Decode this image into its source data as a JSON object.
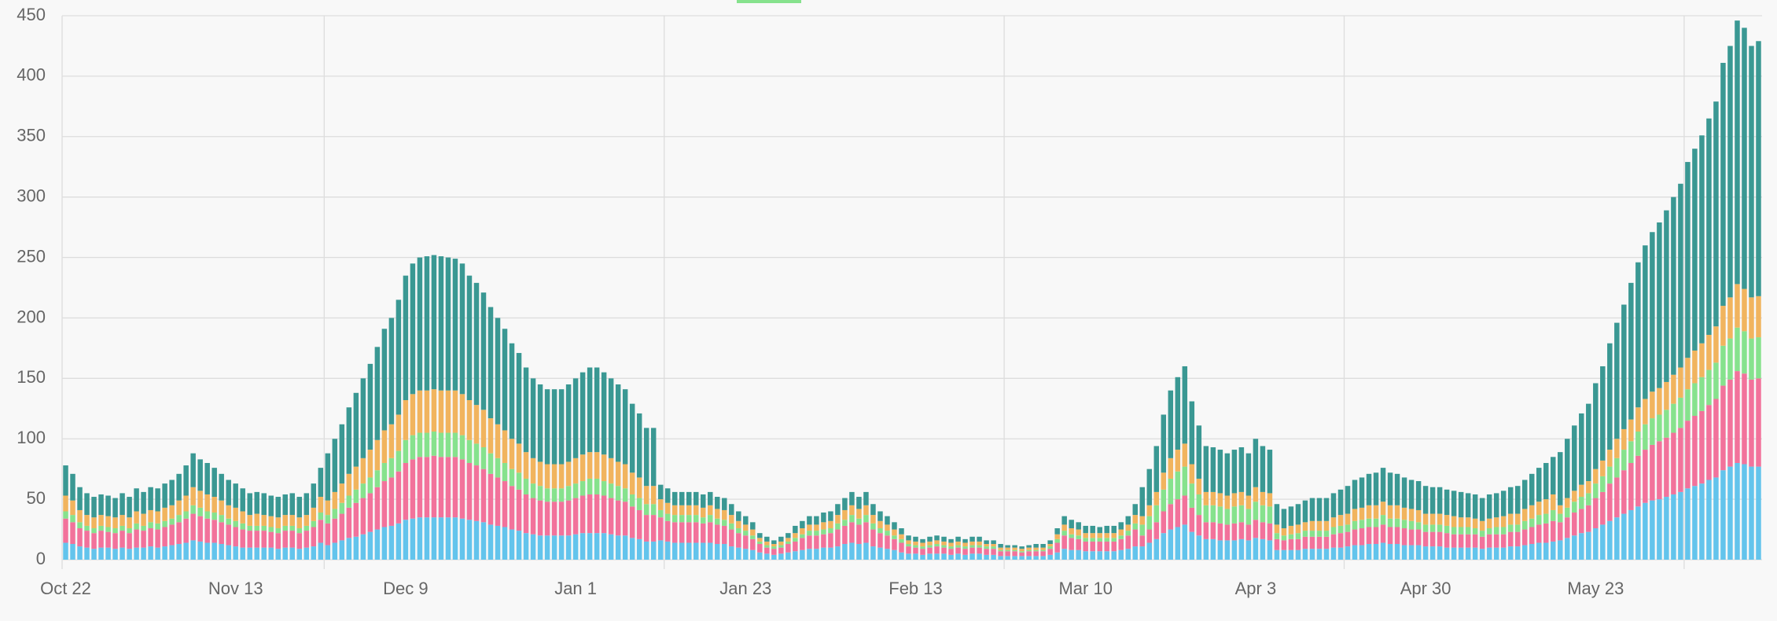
{
  "chart_data": {
    "type": "bar",
    "stacked": true,
    "grid": true,
    "ylim": [
      0,
      450
    ],
    "yticks": [
      0,
      50,
      100,
      150,
      200,
      250,
      300,
      350,
      400,
      450
    ],
    "categories": [
      "Oct 22",
      null,
      null,
      null,
      null,
      null,
      null,
      null,
      null,
      null,
      null,
      null,
      null,
      null,
      null,
      null,
      null,
      null,
      null,
      null,
      null,
      null,
      null,
      null,
      "Nov 13",
      null,
      null,
      null,
      null,
      null,
      null,
      null,
      null,
      null,
      null,
      null,
      null,
      null,
      null,
      null,
      null,
      null,
      null,
      null,
      null,
      null,
      null,
      null,
      "Dec 9",
      null,
      null,
      null,
      null,
      null,
      null,
      null,
      null,
      null,
      null,
      null,
      null,
      null,
      null,
      null,
      null,
      null,
      null,
      null,
      null,
      null,
      null,
      null,
      "Jan 1",
      null,
      null,
      null,
      null,
      null,
      null,
      null,
      null,
      null,
      null,
      null,
      null,
      null,
      null,
      null,
      null,
      null,
      null,
      null,
      null,
      null,
      null,
      null,
      "Jan 23",
      null,
      null,
      null,
      null,
      null,
      null,
      null,
      null,
      null,
      null,
      null,
      null,
      null,
      null,
      null,
      null,
      null,
      null,
      null,
      null,
      null,
      null,
      null,
      "Feb 13",
      null,
      null,
      null,
      null,
      null,
      null,
      null,
      null,
      null,
      null,
      null,
      null,
      null,
      null,
      null,
      null,
      null,
      null,
      null,
      null,
      null,
      null,
      null,
      "Mar 10",
      null,
      null,
      null,
      null,
      null,
      null,
      null,
      null,
      null,
      null,
      null,
      null,
      null,
      null,
      null,
      null,
      null,
      null,
      null,
      null,
      null,
      null,
      null,
      "Apr 3",
      null,
      null,
      null,
      null,
      null,
      null,
      null,
      null,
      null,
      null,
      null,
      null,
      null,
      null,
      null,
      null,
      null,
      null,
      null,
      null,
      null,
      null,
      null,
      "Apr 30",
      null,
      null,
      null,
      null,
      null,
      null,
      null,
      null,
      null,
      null,
      null,
      null,
      null,
      null,
      null,
      null,
      null,
      null,
      null,
      null,
      null,
      null,
      null,
      "May 23",
      null,
      null,
      null,
      null,
      null,
      null,
      null,
      null,
      null,
      null,
      null,
      null,
      null,
      null,
      null,
      null,
      null,
      null,
      null,
      null,
      null,
      null,
      null
    ],
    "series": [
      {
        "color": "#63c4ec",
        "values": [
          14,
          13,
          11,
          10,
          9,
          10,
          10,
          9,
          10,
          9,
          10,
          10,
          11,
          10,
          11,
          12,
          13,
          14,
          16,
          15,
          14,
          14,
          13,
          12,
          11,
          10,
          10,
          10,
          10,
          10,
          9,
          10,
          10,
          9,
          10,
          11,
          14,
          12,
          14,
          16,
          18,
          19,
          21,
          23,
          25,
          27,
          28,
          30,
          33,
          34,
          35,
          35,
          35,
          35,
          35,
          35,
          34,
          33,
          32,
          31,
          29,
          28,
          27,
          25,
          24,
          22,
          21,
          20,
          20,
          20,
          20,
          20,
          21,
          22,
          22,
          22,
          22,
          21,
          20,
          20,
          18,
          17,
          15,
          15,
          16,
          15,
          14,
          14,
          14,
          14,
          14,
          14,
          13,
          13,
          11,
          10,
          9,
          8,
          6,
          5,
          4,
          5,
          6,
          7,
          8,
          9,
          9,
          10,
          10,
          11,
          13,
          14,
          13,
          14,
          11,
          10,
          9,
          8,
          6,
          5,
          5,
          4,
          5,
          5,
          5,
          4,
          5,
          4,
          5,
          5,
          4,
          4,
          3,
          3,
          3,
          3,
          3,
          3,
          3,
          4,
          6,
          9,
          8,
          8,
          7,
          7,
          7,
          7,
          7,
          8,
          9,
          11,
          11,
          14,
          17,
          22,
          25,
          27,
          29,
          23,
          20,
          17,
          17,
          16,
          16,
          16,
          17,
          16,
          18,
          17,
          16,
          8,
          8,
          8,
          8,
          9,
          9,
          9,
          9,
          10,
          10,
          11,
          12,
          12,
          13,
          13,
          14,
          13,
          13,
          12,
          12,
          12,
          11,
          11,
          11,
          10,
          10,
          10,
          10,
          10,
          9,
          10,
          10,
          10,
          11,
          11,
          12,
          13,
          14,
          14,
          15,
          16,
          18,
          20,
          22,
          23,
          26,
          29,
          32,
          35,
          38,
          41,
          44,
          47,
          49,
          50,
          52,
          54,
          56,
          59,
          61,
          63,
          66,
          68,
          74,
          77,
          80,
          79,
          77,
          77
        ]
      },
      {
        "color": "#f2729b",
        "values": [
          20,
          18,
          15,
          14,
          13,
          14,
          13,
          13,
          14,
          13,
          15,
          14,
          15,
          15,
          16,
          17,
          18,
          20,
          22,
          21,
          20,
          19,
          18,
          17,
          16,
          15,
          14,
          14,
          14,
          13,
          13,
          14,
          14,
          13,
          14,
          16,
          19,
          18,
          20,
          22,
          25,
          28,
          30,
          32,
          35,
          38,
          40,
          43,
          47,
          49,
          50,
          50,
          51,
          50,
          50,
          50,
          49,
          47,
          46,
          44,
          42,
          40,
          38,
          36,
          34,
          32,
          30,
          29,
          28,
          28,
          28,
          29,
          30,
          31,
          32,
          32,
          31,
          30,
          29,
          28,
          26,
          24,
          22,
          22,
          19,
          17,
          17,
          17,
          17,
          17,
          16,
          17,
          16,
          15,
          14,
          12,
          11,
          9,
          7,
          5,
          5,
          5,
          7,
          8,
          10,
          11,
          11,
          11,
          12,
          14,
          15,
          17,
          16,
          17,
          14,
          12,
          11,
          9,
          8,
          6,
          5,
          5,
          5,
          6,
          5,
          5,
          5,
          5,
          5,
          5,
          5,
          5,
          4,
          4,
          4,
          3,
          4,
          4,
          4,
          5,
          8,
          11,
          10,
          9,
          8,
          8,
          8,
          8,
          8,
          9,
          11,
          14,
          9,
          11,
          14,
          18,
          21,
          23,
          24,
          20,
          17,
          14,
          14,
          14,
          13,
          14,
          14,
          13,
          15,
          14,
          14,
          9,
          8,
          9,
          9,
          10,
          10,
          10,
          10,
          11,
          12,
          12,
          13,
          14,
          14,
          14,
          15,
          14,
          14,
          14,
          13,
          13,
          12,
          12,
          12,
          12,
          11,
          11,
          11,
          11,
          10,
          11,
          11,
          11,
          12,
          12,
          13,
          14,
          15,
          16,
          17,
          15,
          17,
          19,
          20,
          22,
          25,
          27,
          31,
          33,
          36,
          39,
          42,
          44,
          46,
          48,
          49,
          51,
          53,
          56,
          58,
          60,
          62,
          65,
          70,
          72,
          76,
          75,
          72,
          73
        ]
      },
      {
        "color": "#86e28d",
        "values": [
          6,
          6,
          5,
          4,
          4,
          4,
          4,
          4,
          4,
          4,
          5,
          4,
          5,
          5,
          5,
          5,
          6,
          6,
          7,
          7,
          6,
          6,
          6,
          5,
          5,
          5,
          4,
          4,
          4,
          4,
          4,
          4,
          4,
          4,
          4,
          5,
          6,
          7,
          8,
          9,
          10,
          11,
          12,
          13,
          14,
          15,
          16,
          17,
          19,
          20,
          20,
          20,
          20,
          20,
          20,
          20,
          20,
          19,
          18,
          18,
          17,
          16,
          15,
          14,
          14,
          13,
          12,
          12,
          11,
          11,
          11,
          12,
          12,
          12,
          13,
          13,
          12,
          12,
          12,
          11,
          10,
          10,
          9,
          9,
          6,
          6,
          6,
          6,
          6,
          6,
          5,
          6,
          5,
          5,
          5,
          4,
          4,
          3,
          2,
          2,
          2,
          2,
          2,
          3,
          3,
          4,
          4,
          4,
          4,
          5,
          5,
          6,
          5,
          6,
          5,
          4,
          4,
          3,
          3,
          2,
          2,
          2,
          2,
          2,
          2,
          2,
          2,
          2,
          2,
          2,
          2,
          2,
          1,
          1,
          1,
          1,
          1,
          1,
          1,
          2,
          3,
          4,
          3,
          3,
          3,
          3,
          3,
          3,
          3,
          3,
          4,
          5,
          9,
          11,
          14,
          18,
          21,
          23,
          24,
          20,
          17,
          14,
          14,
          14,
          13,
          14,
          14,
          13,
          15,
          14,
          14,
          5,
          4,
          4,
          5,
          5,
          5,
          5,
          5,
          6,
          6,
          6,
          7,
          7,
          7,
          7,
          8,
          7,
          7,
          7,
          7,
          6,
          6,
          6,
          6,
          6,
          6,
          6,
          6,
          5,
          5,
          5,
          6,
          6,
          6,
          6,
          7,
          7,
          8,
          8,
          9,
          7,
          8,
          9,
          10,
          10,
          12,
          13,
          14,
          16,
          17,
          18,
          20,
          21,
          22,
          22,
          23,
          24,
          25,
          26,
          27,
          28,
          29,
          30,
          33,
          34,
          36,
          35,
          34,
          34
        ]
      },
      {
        "color": "#f1b45e",
        "values": [
          13,
          12,
          10,
          9,
          9,
          9,
          9,
          9,
          9,
          9,
          10,
          10,
          10,
          10,
          11,
          11,
          12,
          13,
          15,
          14,
          14,
          13,
          12,
          11,
          11,
          10,
          9,
          10,
          9,
          9,
          9,
          9,
          9,
          9,
          9,
          11,
          13,
          12,
          14,
          16,
          18,
          19,
          21,
          23,
          25,
          27,
          28,
          30,
          33,
          34,
          35,
          35,
          35,
          35,
          35,
          35,
          34,
          33,
          32,
          31,
          29,
          28,
          27,
          25,
          24,
          22,
          21,
          20,
          20,
          20,
          20,
          20,
          21,
          22,
          22,
          22,
          22,
          21,
          20,
          20,
          18,
          17,
          15,
          15,
          9,
          9,
          8,
          8,
          8,
          8,
          8,
          8,
          8,
          8,
          7,
          6,
          5,
          5,
          3,
          3,
          2,
          3,
          3,
          4,
          5,
          5,
          5,
          6,
          6,
          7,
          8,
          8,
          8,
          8,
          7,
          6,
          5,
          5,
          4,
          3,
          3,
          3,
          3,
          3,
          3,
          3,
          3,
          3,
          3,
          3,
          2,
          2,
          2,
          2,
          2,
          2,
          2,
          2,
          2,
          2,
          4,
          5,
          5,
          5,
          4,
          4,
          4,
          4,
          4,
          5,
          5,
          7,
          7,
          9,
          11,
          14,
          17,
          18,
          19,
          16,
          13,
          11,
          11,
          11,
          11,
          11,
          11,
          11,
          12,
          11,
          11,
          7,
          6,
          7,
          7,
          7,
          8,
          8,
          8,
          8,
          9,
          9,
          10,
          10,
          11,
          11,
          11,
          11,
          11,
          10,
          10,
          10,
          9,
          9,
          9,
          9,
          9,
          8,
          8,
          8,
          8,
          8,
          8,
          9,
          9,
          9,
          10,
          11,
          11,
          12,
          13,
          7,
          8,
          9,
          10,
          10,
          12,
          13,
          14,
          16,
          17,
          18,
          20,
          21,
          22,
          22,
          23,
          24,
          25,
          26,
          27,
          28,
          29,
          30,
          33,
          34,
          36,
          35,
          34,
          34
        ]
      },
      {
        "color": "#3a9893",
        "values": [
          25,
          22,
          19,
          18,
          17,
          17,
          17,
          16,
          18,
          17,
          19,
          18,
          19,
          19,
          20,
          21,
          22,
          25,
          28,
          26,
          26,
          24,
          22,
          21,
          20,
          19,
          18,
          18,
          18,
          17,
          17,
          17,
          18,
          17,
          18,
          20,
          24,
          39,
          44,
          49,
          55,
          61,
          66,
          71,
          77,
          84,
          88,
          95,
          103,
          108,
          110,
          111,
          111,
          111,
          110,
          109,
          108,
          103,
          101,
          97,
          92,
          88,
          84,
          79,
          75,
          70,
          66,
          64,
          62,
          62,
          62,
          64,
          66,
          68,
          70,
          70,
          68,
          66,
          64,
          62,
          57,
          53,
          48,
          48,
          12,
          12,
          11,
          11,
          11,
          11,
          11,
          11,
          10,
          10,
          9,
          8,
          7,
          6,
          4,
          4,
          3,
          4,
          4,
          6,
          6,
          7,
          7,
          8,
          8,
          9,
          10,
          11,
          10,
          11,
          9,
          8,
          7,
          6,
          5,
          4,
          4,
          3,
          4,
          4,
          4,
          3,
          4,
          3,
          4,
          4,
          3,
          3,
          3,
          2,
          2,
          2,
          2,
          3,
          3,
          3,
          5,
          7,
          7,
          6,
          6,
          6,
          5,
          6,
          6,
          6,
          7,
          9,
          24,
          30,
          38,
          48,
          56,
          60,
          64,
          52,
          44,
          38,
          37,
          36,
          35,
          36,
          37,
          35,
          40,
          38,
          36,
          17,
          16,
          16,
          17,
          18,
          19,
          19,
          19,
          20,
          21,
          23,
          24,
          25,
          26,
          27,
          28,
          27,
          26,
          25,
          24,
          24,
          23,
          22,
          22,
          21,
          21,
          21,
          20,
          20,
          19,
          20,
          20,
          21,
          22,
          23,
          24,
          26,
          28,
          30,
          31,
          44,
          49,
          54,
          59,
          64,
          71,
          78,
          88,
          96,
          103,
          113,
          120,
          127,
          132,
          137,
          142,
          147,
          152,
          162,
          167,
          172,
          179,
          186,
          201,
          208,
          218,
          216,
          208,
          211
        ]
      }
    ]
  }
}
